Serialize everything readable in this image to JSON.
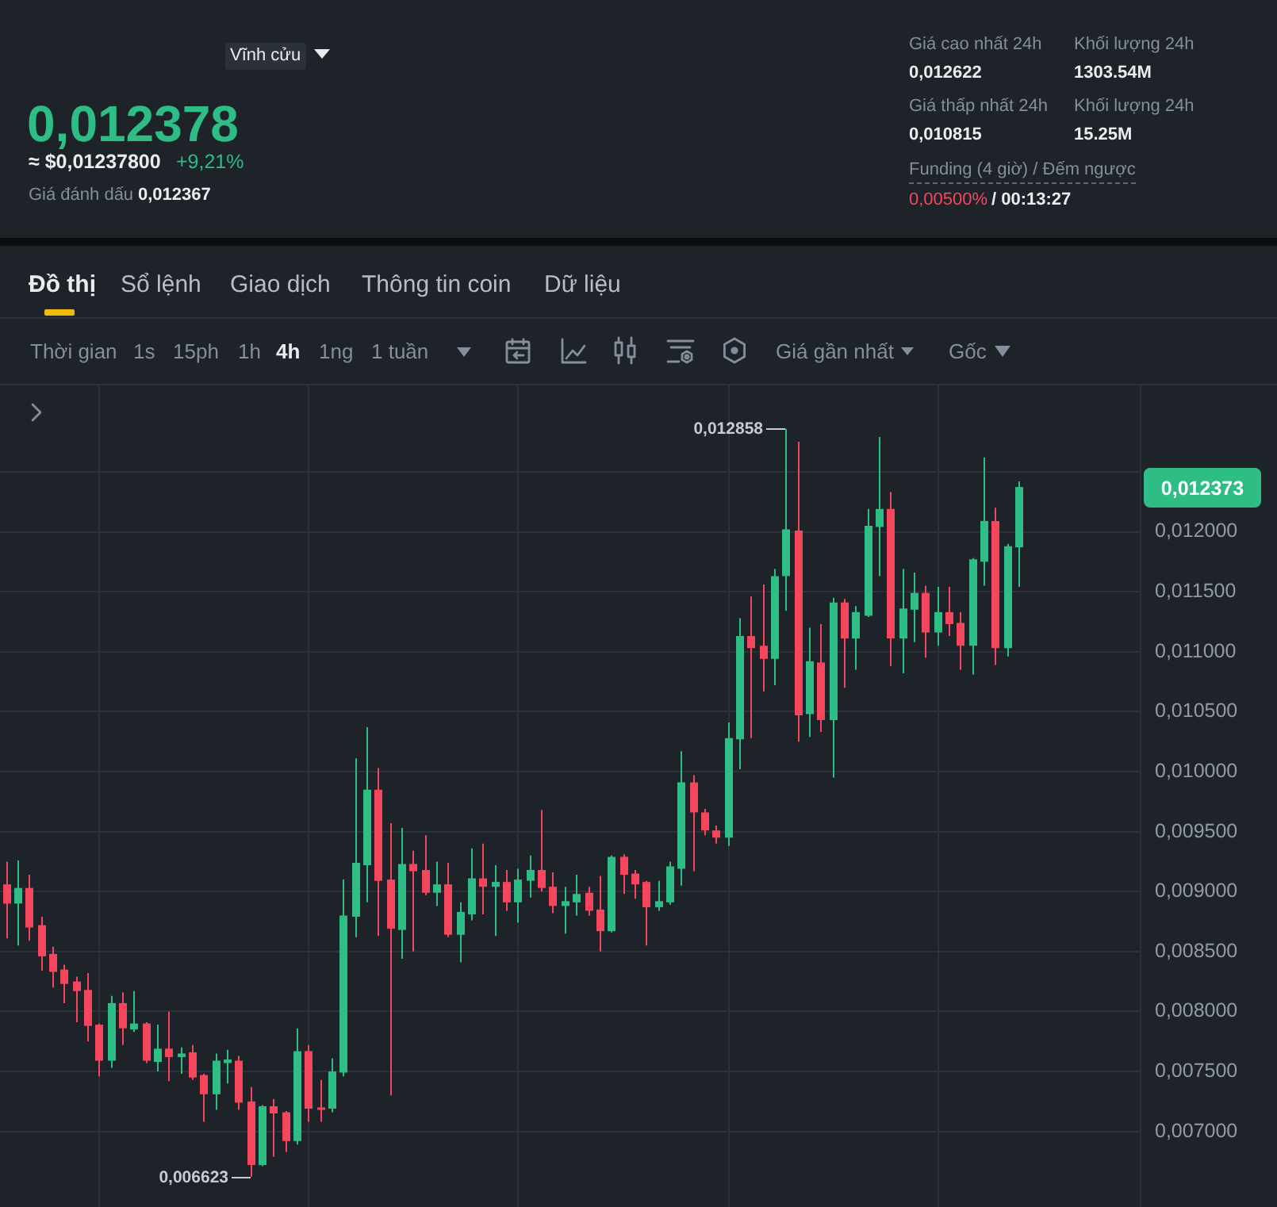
{
  "chart_data": {
    "type": "candlestick",
    "annotations": [
      "Vĩnh cửu",
      "0,012378",
      "≈ $0,01237800",
      "+9,21%",
      "Giá đánh dấu",
      "0,012367",
      "Giá cao nhất 24h",
      "0,012622",
      "Khối lượng 24h",
      "1303.54M",
      "Giá thấp nhất 24h",
      "0,010815",
      "Khối lượng 24h",
      "15.25M",
      "Funding (4 giờ) / Đếm ngược",
      "0,00500%",
      "/ 00:13:27",
      "Đồ thị",
      "Sổ lệnh",
      "Giao dịch",
      "Thông tin coin",
      "Dữ liệu",
      "Thời gian",
      "1s",
      "15ph",
      "1h",
      "4h",
      "1ng",
      "1 tuần",
      "Giá gần nhất",
      "Gốc",
      "0,012858",
      "0,006623",
      "0,012373"
    ],
    "categories": [
      null,
      null,
      null,
      null,
      null,
      null,
      null,
      null,
      null,
      null,
      null,
      null,
      null,
      null,
      null,
      null,
      null,
      null,
      null,
      null,
      null,
      null,
      null,
      null,
      null,
      null,
      null,
      null,
      null,
      null,
      null,
      null,
      null,
      null,
      null,
      null,
      null,
      null,
      null,
      null,
      null,
      null,
      null,
      null,
      null,
      null,
      null,
      null,
      null,
      null,
      null,
      null,
      null,
      null,
      null,
      null,
      null,
      null,
      null,
      null,
      null,
      null,
      null,
      null,
      null,
      null,
      null,
      null,
      null,
      null,
      null,
      null,
      null,
      null,
      null,
      null,
      null,
      null,
      null,
      null,
      null,
      null,
      null,
      null,
      null,
      null,
      null,
      null,
      null,
      null,
      null,
      null,
      null,
      null,
      null,
      null,
      null,
      null
    ],
    "ohlc": [
      [
        0.00906,
        0.00925,
        0.00861,
        0.0089
      ],
      [
        0.0089,
        0.00926,
        0.00855,
        0.00903
      ],
      [
        0.00903,
        0.00914,
        0.00859,
        0.0087
      ],
      [
        0.00872,
        0.00879,
        0.00834,
        0.00846
      ],
      [
        0.00848,
        0.00854,
        0.0082,
        0.00833
      ],
      [
        0.00835,
        0.00839,
        0.00807,
        0.00823
      ],
      [
        0.00825,
        0.00829,
        0.00791,
        0.00817
      ],
      [
        0.00818,
        0.00832,
        0.00775,
        0.00788
      ],
      [
        0.00789,
        0.0079,
        0.00746,
        0.00759
      ],
      [
        0.00759,
        0.00813,
        0.00753,
        0.00807
      ],
      [
        0.00807,
        0.00816,
        0.00772,
        0.00786
      ],
      [
        0.00785,
        0.00817,
        0.00783,
        0.0079
      ],
      [
        0.0079,
        0.00791,
        0.00757,
        0.00759
      ],
      [
        0.00758,
        0.00789,
        0.0075,
        0.00769
      ],
      [
        0.00769,
        0.008,
        0.00742,
        0.00762
      ],
      [
        0.00762,
        0.0077,
        0.00748,
        0.00765
      ],
      [
        0.00766,
        0.00772,
        0.00743,
        0.00745
      ],
      [
        0.00747,
        0.00748,
        0.00708,
        0.00731
      ],
      [
        0.00731,
        0.00765,
        0.00718,
        0.00759
      ],
      [
        0.00757,
        0.00768,
        0.0074,
        0.0076
      ],
      [
        0.00759,
        0.00763,
        0.00718,
        0.00724
      ],
      [
        0.00725,
        0.00737,
        0.006623,
        0.00672
      ],
      [
        0.00672,
        0.00722,
        0.00671,
        0.00721
      ],
      [
        0.00721,
        0.00727,
        0.00679,
        0.00715
      ],
      [
        0.00716,
        0.00717,
        0.00683,
        0.00692
      ],
      [
        0.00692,
        0.00786,
        0.00689,
        0.00767
      ],
      [
        0.00767,
        0.00772,
        0.00708,
        0.00719
      ],
      [
        0.0072,
        0.00743,
        0.00708,
        0.00718
      ],
      [
        0.00719,
        0.00761,
        0.00716,
        0.0075
      ],
      [
        0.00749,
        0.0091,
        0.00746,
        0.0088
      ],
      [
        0.00879,
        0.01011,
        0.00862,
        0.00924
      ],
      [
        0.00922,
        0.01037,
        0.00891,
        0.00985
      ],
      [
        0.00985,
        0.01003,
        0.00863,
        0.00909
      ],
      [
        0.0091,
        0.00957,
        0.0073,
        0.00869
      ],
      [
        0.00868,
        0.00953,
        0.00844,
        0.00923
      ],
      [
        0.00923,
        0.00934,
        0.0085,
        0.00917
      ],
      [
        0.00918,
        0.00947,
        0.00897,
        0.00899
      ],
      [
        0.00899,
        0.00925,
        0.00888,
        0.00906
      ],
      [
        0.00906,
        0.00924,
        0.00862,
        0.00864
      ],
      [
        0.00864,
        0.00891,
        0.00841,
        0.00883
      ],
      [
        0.00881,
        0.00936,
        0.00876,
        0.00911
      ],
      [
        0.00911,
        0.0094,
        0.00881,
        0.00904
      ],
      [
        0.00904,
        0.00922,
        0.00863,
        0.00908
      ],
      [
        0.00908,
        0.00918,
        0.00884,
        0.00891
      ],
      [
        0.00891,
        0.00919,
        0.00874,
        0.0091
      ],
      [
        0.00909,
        0.0093,
        0.00895,
        0.00918
      ],
      [
        0.00918,
        0.00968,
        0.009,
        0.00903
      ],
      [
        0.00904,
        0.00916,
        0.00882,
        0.00888
      ],
      [
        0.00888,
        0.00904,
        0.00865,
        0.00892
      ],
      [
        0.00891,
        0.00914,
        0.0088,
        0.00898
      ],
      [
        0.00899,
        0.00904,
        0.0088,
        0.00884
      ],
      [
        0.00885,
        0.00913,
        0.0085,
        0.00867
      ],
      [
        0.00867,
        0.0093,
        0.00866,
        0.00929
      ],
      [
        0.00929,
        0.00931,
        0.00898,
        0.00914
      ],
      [
        0.00915,
        0.00918,
        0.00894,
        0.00906
      ],
      [
        0.00908,
        0.00909,
        0.00855,
        0.00887
      ],
      [
        0.00887,
        0.00909,
        0.00884,
        0.00892
      ],
      [
        0.00891,
        0.00925,
        0.00889,
        0.00921
      ],
      [
        0.00919,
        0.01017,
        0.00905,
        0.00991
      ],
      [
        0.00991,
        0.00997,
        0.00917,
        0.00966
      ],
      [
        0.00966,
        0.00969,
        0.00947,
        0.00951
      ],
      [
        0.00951,
        0.00955,
        0.0094,
        0.00945
      ],
      [
        0.00945,
        0.01041,
        0.00938,
        0.01028
      ],
      [
        0.01027,
        0.01128,
        0.01002,
        0.01113
      ],
      [
        0.01113,
        0.01146,
        0.01028,
        0.01103
      ],
      [
        0.01105,
        0.01156,
        0.01067,
        0.01094
      ],
      [
        0.01094,
        0.01169,
        0.01072,
        0.01163
      ],
      [
        0.01163,
        0.012858,
        0.01134,
        0.01202
      ],
      [
        0.01201,
        0.01275,
        0.01025,
        0.01047
      ],
      [
        0.01048,
        0.0112,
        0.01029,
        0.01092
      ],
      [
        0.01091,
        0.01123,
        0.01033,
        0.01043
      ],
      [
        0.01043,
        0.01145,
        0.00995,
        0.01141
      ],
      [
        0.01141,
        0.01144,
        0.0107,
        0.01111
      ],
      [
        0.01111,
        0.01138,
        0.01085,
        0.01133
      ],
      [
        0.0113,
        0.01219,
        0.01129,
        0.01205
      ],
      [
        0.01204,
        0.01279,
        0.01163,
        0.01219
      ],
      [
        0.01219,
        0.01233,
        0.01088,
        0.01111
      ],
      [
        0.01111,
        0.01169,
        0.01082,
        0.01136
      ],
      [
        0.01135,
        0.01166,
        0.01108,
        0.01149
      ],
      [
        0.01149,
        0.01155,
        0.01095,
        0.01116
      ],
      [
        0.01116,
        0.01154,
        0.01105,
        0.01133
      ],
      [
        0.01133,
        0.01154,
        0.01113,
        0.01123
      ],
      [
        0.01124,
        0.01133,
        0.01085,
        0.01105
      ],
      [
        0.01105,
        0.01178,
        0.01081,
        0.01177
      ],
      [
        0.01175,
        0.01262,
        0.01155,
        0.01209
      ],
      [
        0.01209,
        0.0122,
        0.01089,
        0.01103
      ],
      [
        0.01103,
        0.0119,
        0.01096,
        0.01188
      ],
      [
        0.01187,
        0.01242,
        0.01154,
        0.012373
      ],
      null,
      null,
      null,
      null,
      null,
      null,
      null,
      null,
      null,
      null
    ],
    "colors": [
      "#f6465d",
      "#2ebd85",
      "#f6465d",
      "#f6465d",
      "#f6465d",
      "#f6465d",
      "#f6465d",
      "#f6465d",
      "#f6465d",
      "#2ebd85",
      "#f6465d",
      "#2ebd85",
      "#f6465d",
      "#2ebd85",
      "#f6465d",
      "#2ebd85",
      "#f6465d",
      "#f6465d",
      "#2ebd85",
      "#2ebd85",
      "#f6465d",
      "#f6465d",
      "#2ebd85",
      "#f6465d",
      "#f6465d",
      "#2ebd85",
      "#f6465d",
      "#f6465d",
      "#2ebd85",
      "#2ebd85",
      "#2ebd85",
      "#2ebd85",
      "#f6465d",
      "#f6465d",
      "#2ebd85",
      "#f6465d",
      "#f6465d",
      "#2ebd85",
      "#f6465d",
      "#2ebd85",
      "#2ebd85",
      "#f6465d",
      "#2ebd85",
      "#f6465d",
      "#2ebd85",
      "#2ebd85",
      "#f6465d",
      "#f6465d",
      "#2ebd85",
      "#2ebd85",
      "#f6465d",
      "#f6465d",
      "#2ebd85",
      "#f6465d",
      "#f6465d",
      "#f6465d",
      "#2ebd85",
      "#2ebd85",
      "#2ebd85",
      "#f6465d",
      "#f6465d",
      "#f6465d",
      "#2ebd85",
      "#2ebd85",
      "#f6465d",
      "#f6465d",
      "#2ebd85",
      "#2ebd85",
      "#f6465d",
      "#2ebd85",
      "#f6465d",
      "#2ebd85",
      "#f6465d",
      "#2ebd85",
      "#2ebd85",
      "#2ebd85",
      "#f6465d",
      "#2ebd85",
      "#2ebd85",
      "#f6465d",
      "#2ebd85",
      "#f6465d",
      "#f6465d",
      "#2ebd85",
      "#2ebd85",
      "#f6465d",
      "#2ebd85",
      "#2ebd85",
      null,
      null,
      null,
      null,
      null,
      null,
      null,
      null,
      null,
      null
    ],
    "ylim": [
      0.00637,
      0.01322
    ],
    "yticks": [
      {
        "value": 0.007,
        "label": "0,007000"
      },
      {
        "value": 0.0075,
        "label": "0,007500"
      },
      {
        "value": 0.008,
        "label": "0,008000"
      },
      {
        "value": 0.0085,
        "label": "0,008500"
      },
      {
        "value": 0.009,
        "label": "0,009000"
      },
      {
        "value": 0.0095,
        "label": "0,009500"
      },
      {
        "value": 0.01,
        "label": "0,010000"
      },
      {
        "value": 0.0105,
        "label": "0,010500"
      },
      {
        "value": 0.011,
        "label": "0,011000"
      },
      {
        "value": 0.0115,
        "label": "0,011500"
      },
      {
        "value": 0.012,
        "label": "0,012000"
      },
      {
        "value": 0.0125,
        "label": null
      }
    ],
    "grid": true,
    "tick_labels": "y"
  }
}
